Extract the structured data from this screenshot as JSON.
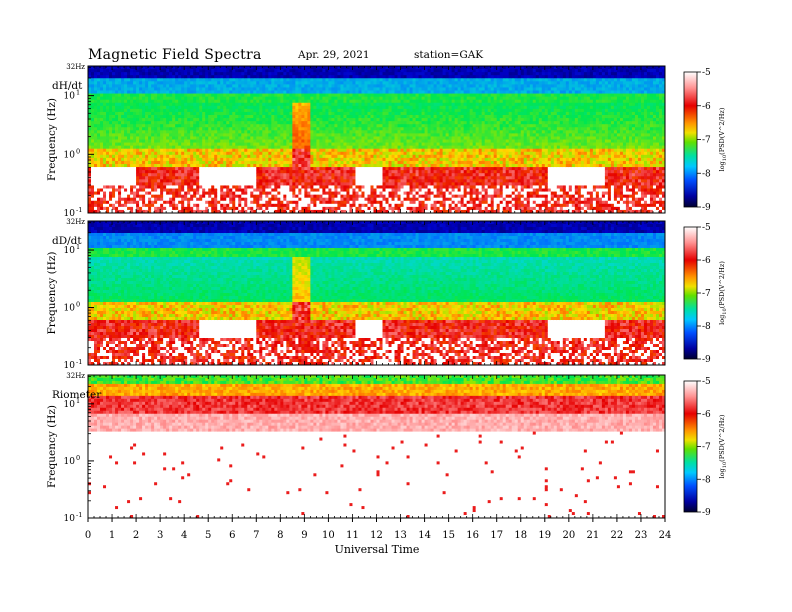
{
  "header": {
    "title": "Magnetic Field Spectra",
    "date": "Apr. 29, 2021",
    "station": "station=GAK"
  },
  "chart_data": {
    "type": "heatmap",
    "xlabel": "Universal Time",
    "x_ticks": [
      "0",
      "1",
      "2",
      "3",
      "4",
      "5",
      "6",
      "7",
      "8",
      "9",
      "10",
      "11",
      "12",
      "13",
      "14",
      "15",
      "16",
      "17",
      "18",
      "19",
      "20",
      "21",
      "22",
      "23",
      "24"
    ],
    "xlim": [
      0,
      24
    ],
    "panels": [
      {
        "name": "dH/dt",
        "ylabel": "Frequency (Hz)",
        "y_top_label": "32Hz",
        "y_ticks": [
          {
            "base": "10",
            "exp": "1",
            "value": 10
          },
          {
            "base": "10",
            "exp": "0",
            "value": 1
          },
          {
            "base": "10",
            "exp": "-1",
            "value": 0.1
          }
        ],
        "y_scale": "log",
        "ylim": [
          0.1,
          32
        ],
        "colorbar": {
          "label": "log",
          "label_sub": "10",
          "label_rest": "(PSD(V^2/Hz)",
          "ticks": [
            "-5",
            "-6",
            "-7",
            "-8",
            "-9"
          ],
          "range": [
            -9,
            -5
          ]
        }
      },
      {
        "name": "dD/dt",
        "ylabel": "Frequency (Hz)",
        "y_top_label": "32Hz",
        "y_ticks": [
          {
            "base": "10",
            "exp": "1",
            "value": 10
          },
          {
            "base": "10",
            "exp": "0",
            "value": 1
          },
          {
            "base": "10",
            "exp": "-1",
            "value": 0.1
          }
        ],
        "y_scale": "log",
        "ylim": [
          0.1,
          32
        ],
        "colorbar": {
          "label": "log",
          "label_sub": "10",
          "label_rest": "(PSD(V^2/Hz)",
          "ticks": [
            "-5",
            "-6",
            "-7",
            "-8",
            "-9"
          ],
          "range": [
            -9,
            -5
          ]
        }
      },
      {
        "name": "Riometer",
        "ylabel": "Frequency (Hz)",
        "y_top_label": "32Hz",
        "y_ticks": [
          {
            "base": "10",
            "exp": "1",
            "value": 10
          },
          {
            "base": "10",
            "exp": "0",
            "value": 1
          },
          {
            "base": "10",
            "exp": "-1",
            "value": 0.1
          }
        ],
        "y_scale": "log",
        "ylim": [
          0.1,
          32
        ],
        "colorbar": {
          "label": "log",
          "label_sub": "10",
          "label_rest": "(PSD(V^2/Hz)",
          "ticks": [
            "-5",
            "-6",
            "-7",
            "-8",
            "-9"
          ],
          "range": [
            -9,
            -5
          ]
        }
      }
    ],
    "colormap": [
      "#000040",
      "#0000c8",
      "#0078ff",
      "#00dcdc",
      "#00e600",
      "#c8e600",
      "#ffd200",
      "#ff6400",
      "#e60000",
      "#ff9090",
      "#ffffff"
    ]
  }
}
